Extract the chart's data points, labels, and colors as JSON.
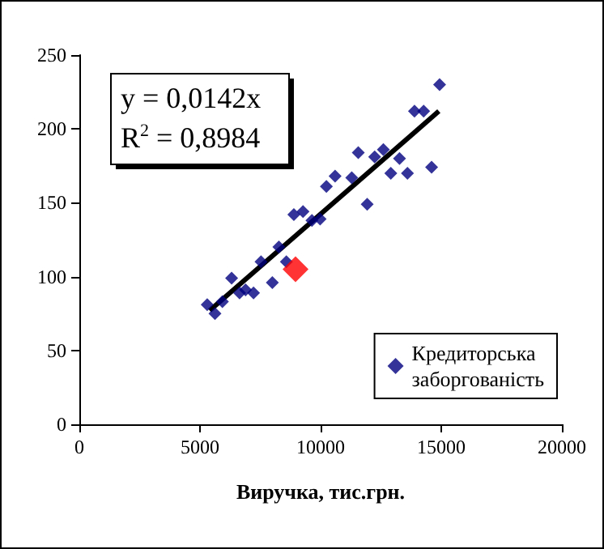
{
  "chart_data": {
    "type": "scatter",
    "xlabel": "Виручка, тис.грн.",
    "annotations": [
      "y = 0,0142x",
      "R$^{2}$ = 0,8984"
    ],
    "xlim": [
      0,
      20000
    ],
    "xticks": [
      0,
      5000,
      10000,
      15000,
      20000
    ],
    "ylim": [
      0,
      250
    ],
    "yticks": [
      0,
      50,
      100,
      150,
      200,
      250
    ],
    "grid": false,
    "legend": "bottom right",
    "marker": "diamond",
    "series": [
      {
        "name": "Кредиторська заборгованість",
        "color": "#000080",
        "x": [
          5300,
          5620,
          5930,
          6310,
          6640,
          6890,
          7220,
          7530,
          8000,
          8270,
          8580,
          8890,
          9270,
          9640,
          9980,
          10240,
          10600,
          11290,
          11560,
          11930,
          12240,
          12600,
          12910,
          13270,
          13600,
          13890,
          14270,
          14600,
          14930
        ],
        "values": [
          81,
          75,
          83,
          99,
          89,
          91,
          89,
          110,
          96,
          120,
          110,
          142,
          144,
          138,
          139,
          161,
          168,
          167,
          184,
          149,
          181,
          186,
          170,
          180,
          170,
          212,
          212,
          174,
          230
        ]
      },
      {
        "color": "#ff0000",
        "x": [
          8960
        ],
        "values": [
          105
        ]
      },
      {
        "type": "line",
        "color": "#000000",
        "marker": "none",
        "x": [
          5400,
          14900
        ],
        "values": [
          77,
          212
        ]
      }
    ]
  }
}
